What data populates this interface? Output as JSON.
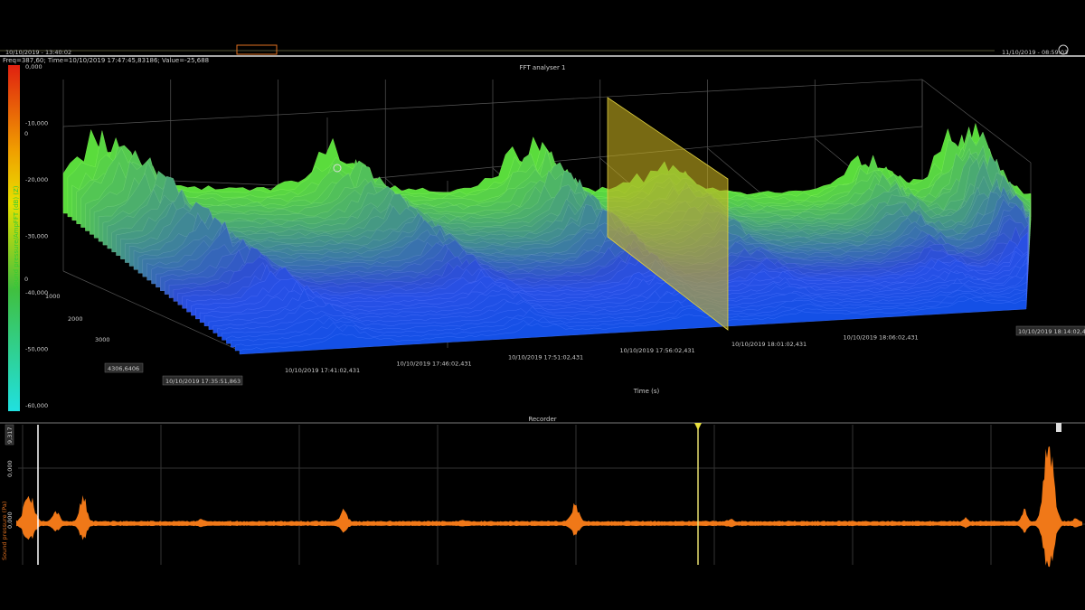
{
  "timeline": {
    "start": "10/10/2019 - 13:40:02",
    "end": "11/10/2019 - 08:59:03"
  },
  "status": "Freq=387,60; Time=10/10/2019 17:47:45,83186; Value=-25,688",
  "fft": {
    "title": "FFT analyser 1",
    "scale_labels": [
      "0,000",
      "-10,000",
      "-20,000",
      "-30,000",
      "-40,000",
      "-50,000",
      "-60,000"
    ],
    "scale_markers": [
      "0",
      "0"
    ],
    "z_label": "Sound pressure/AmpFFT (dB) (Z)",
    "freq_labels": [
      "1000",
      "2000",
      "3000"
    ],
    "freq_cursor": "4306,6406",
    "time_start": "10/10/2019 17:35:51,863",
    "time_labels": [
      "10/10/2019 17:41:02,431",
      "10/10/2019 17:46:02,431",
      "10/10/2019 17:51:02,431",
      "10/10/2019 17:56:02,431",
      "10/10/2019 18:01:02,431",
      "10/10/2019 18:06:02,431"
    ],
    "time_end": "10/10/2019 18:14:02,4",
    "time_axis": "Time (s)"
  },
  "recorder": {
    "title": "Recorder",
    "max": "9,317",
    "tick_top": "0,000",
    "tick_mid": "0,000",
    "y_label": "Sound pressure (Pa)"
  }
}
